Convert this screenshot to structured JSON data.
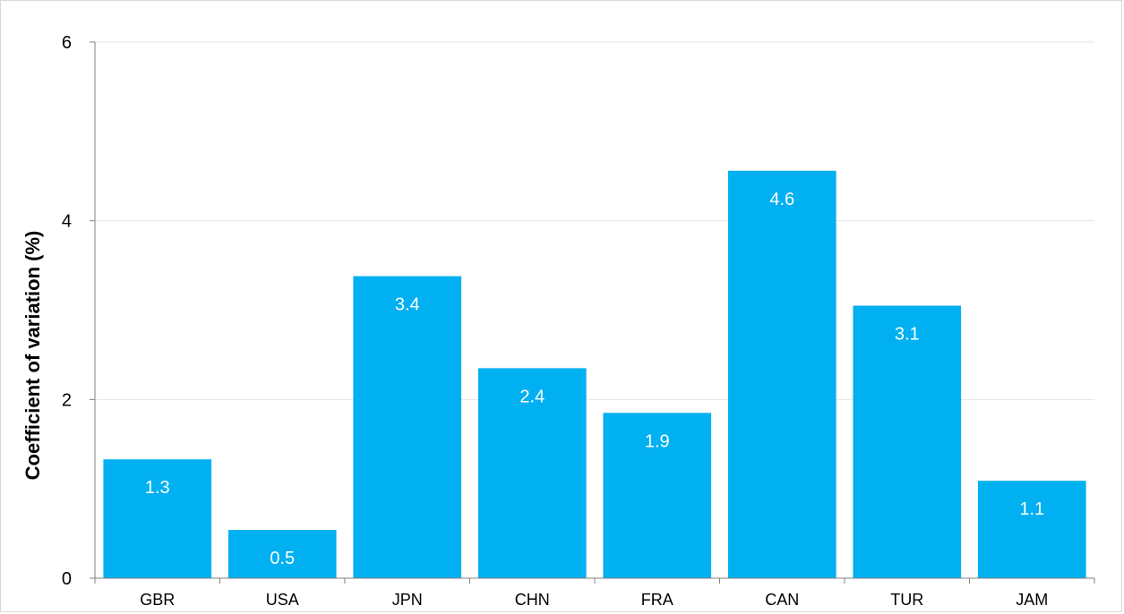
{
  "chart_data": {
    "type": "bar",
    "title": "",
    "xlabel": "",
    "ylabel": "Coefficient of variation (%)",
    "categories": [
      "GBR",
      "USA",
      "JPN",
      "CHN",
      "FRA",
      "CAN",
      "TUR",
      "JAM"
    ],
    "values": [
      1.33,
      0.54,
      3.38,
      2.35,
      1.85,
      4.56,
      3.05,
      1.09
    ],
    "data_labels": [
      "1.3",
      "0.5",
      "3.4",
      "2.4",
      "1.9",
      "4.6",
      "3.1",
      "1.1"
    ],
    "ylim": [
      0,
      6
    ],
    "yticks": [
      0,
      2,
      4,
      6
    ],
    "ytick_labels": [
      "0",
      "2",
      "4",
      "6"
    ],
    "grid": true,
    "legend": "none",
    "bar_color": "#00b0f0",
    "grid_color": "#e6e6e6"
  }
}
